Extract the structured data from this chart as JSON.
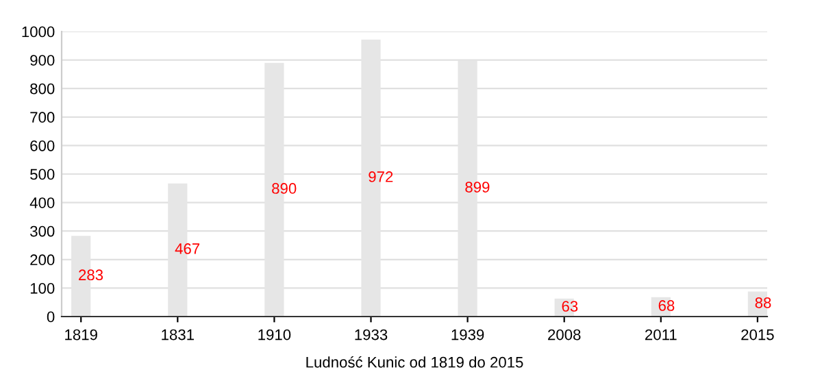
{
  "chart_data": {
    "type": "bar",
    "xlabel": "Ludność Kunic od 1819 do 2015",
    "categories": [
      "1819",
      "1831",
      "1910",
      "1933",
      "1939",
      "2008",
      "2011",
      "2015"
    ],
    "values": [
      283,
      467,
      890,
      972,
      899,
      63,
      68,
      88
    ],
    "color": "#e6e6e6",
    "ylim": [
      0,
      1000
    ],
    "yticks": [
      0,
      100,
      200,
      300,
      400,
      500,
      600,
      700,
      800,
      900,
      1000
    ],
    "grid": "y",
    "data_labels": true
  }
}
